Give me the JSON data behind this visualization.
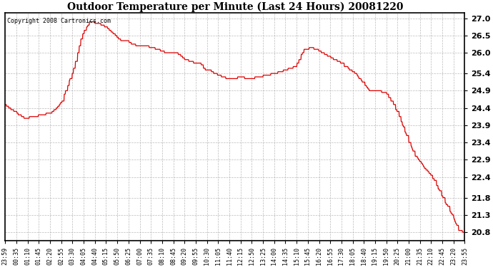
{
  "title": "Outdoor Temperature per Minute (Last 24 Hours) 20081220",
  "copyright_text": "Copyright 2008 Cartronics.com",
  "line_color": "#dd0000",
  "background_color": "#ffffff",
  "grid_color": "#aaaaaa",
  "grid_style": "--",
  "yticks": [
    20.8,
    21.3,
    21.8,
    22.4,
    22.9,
    23.4,
    23.9,
    24.4,
    24.9,
    25.4,
    26.0,
    26.5,
    27.0
  ],
  "ylim": [
    20.55,
    27.15
  ],
  "xtick_labels": [
    "23:59",
    "00:35",
    "01:10",
    "01:45",
    "02:20",
    "02:55",
    "03:30",
    "04:05",
    "04:40",
    "05:15",
    "05:50",
    "06:25",
    "07:00",
    "07:35",
    "08:10",
    "08:45",
    "09:20",
    "09:55",
    "10:30",
    "11:05",
    "11:40",
    "12:15",
    "12:50",
    "13:25",
    "14:00",
    "14:35",
    "15:10",
    "15:45",
    "16:20",
    "16:55",
    "17:30",
    "18:05",
    "18:40",
    "19:15",
    "19:50",
    "20:25",
    "21:00",
    "21:35",
    "22:10",
    "22:45",
    "23:20",
    "23:55"
  ],
  "key_x": [
    0,
    20,
    60,
    90,
    140,
    175,
    210,
    240,
    265,
    290,
    315,
    335,
    350,
    365,
    380,
    395,
    415,
    440,
    460,
    480,
    500,
    515,
    530,
    545,
    565,
    580,
    600,
    615,
    625,
    640,
    655,
    670,
    690,
    715,
    740,
    760,
    790,
    820,
    840,
    860,
    875,
    890,
    910,
    935,
    955,
    975,
    1000,
    1020,
    1045,
    1065,
    1090,
    1115,
    1140,
    1165,
    1190,
    1210,
    1235,
    1260,
    1285,
    1310,
    1340,
    1370,
    1400,
    1420,
    1439
  ],
  "key_y": [
    24.5,
    24.35,
    24.1,
    24.15,
    24.25,
    24.55,
    25.4,
    26.5,
    26.9,
    26.85,
    26.75,
    26.6,
    26.45,
    26.35,
    26.35,
    26.25,
    26.2,
    26.2,
    26.15,
    26.1,
    26.0,
    26.0,
    26.0,
    25.95,
    25.8,
    25.75,
    25.7,
    25.65,
    25.5,
    25.5,
    25.4,
    25.35,
    25.25,
    25.25,
    25.3,
    25.25,
    25.3,
    25.35,
    25.4,
    25.45,
    25.5,
    25.55,
    25.6,
    26.1,
    26.15,
    26.1,
    25.95,
    25.85,
    25.75,
    25.6,
    25.45,
    25.2,
    24.9,
    24.9,
    24.85,
    24.6,
    24.15,
    23.5,
    23.0,
    22.7,
    22.35,
    21.8,
    21.3,
    20.85,
    20.8
  ]
}
